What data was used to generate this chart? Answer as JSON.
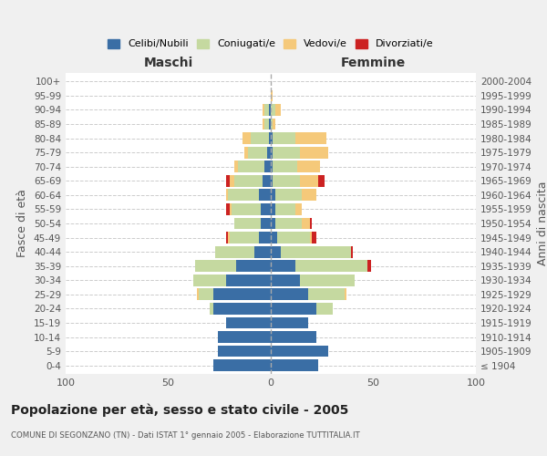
{
  "age_groups": [
    "100+",
    "95-99",
    "90-94",
    "85-89",
    "80-84",
    "75-79",
    "70-74",
    "65-69",
    "60-64",
    "55-59",
    "50-54",
    "45-49",
    "40-44",
    "35-39",
    "30-34",
    "25-29",
    "20-24",
    "15-19",
    "10-14",
    "5-9",
    "0-4"
  ],
  "birth_years": [
    "≤ 1904",
    "1905-1909",
    "1910-1914",
    "1915-1919",
    "1920-1924",
    "1925-1929",
    "1930-1934",
    "1935-1939",
    "1940-1944",
    "1945-1949",
    "1950-1954",
    "1955-1959",
    "1960-1964",
    "1965-1969",
    "1970-1974",
    "1975-1979",
    "1980-1984",
    "1985-1989",
    "1990-1994",
    "1995-1999",
    "2000-2004"
  ],
  "male": {
    "celibe": [
      0,
      0,
      1,
      1,
      1,
      2,
      3,
      4,
      6,
      5,
      5,
      6,
      8,
      17,
      22,
      28,
      28,
      22,
      26,
      26,
      28
    ],
    "coniugato": [
      0,
      0,
      2,
      2,
      9,
      9,
      13,
      14,
      15,
      14,
      13,
      14,
      19,
      20,
      16,
      7,
      2,
      0,
      0,
      0,
      0
    ],
    "vedovo": [
      0,
      0,
      1,
      1,
      4,
      2,
      2,
      2,
      1,
      1,
      0,
      1,
      0,
      0,
      0,
      1,
      0,
      0,
      0,
      0,
      0
    ],
    "divorziato": [
      0,
      0,
      0,
      0,
      0,
      0,
      0,
      2,
      0,
      2,
      0,
      1,
      0,
      0,
      0,
      0,
      0,
      0,
      0,
      0,
      0
    ]
  },
  "female": {
    "nubile": [
      0,
      0,
      0,
      0,
      1,
      1,
      1,
      1,
      2,
      2,
      2,
      3,
      5,
      12,
      14,
      18,
      22,
      18,
      22,
      28,
      23
    ],
    "coniugata": [
      0,
      0,
      2,
      1,
      11,
      13,
      12,
      13,
      13,
      10,
      13,
      16,
      34,
      35,
      27,
      18,
      8,
      0,
      0,
      0,
      0
    ],
    "vedova": [
      0,
      1,
      3,
      1,
      15,
      14,
      11,
      9,
      7,
      3,
      4,
      1,
      0,
      0,
      0,
      1,
      0,
      0,
      0,
      0,
      0
    ],
    "divorziata": [
      0,
      0,
      0,
      0,
      0,
      0,
      0,
      3,
      0,
      0,
      1,
      2,
      1,
      2,
      0,
      0,
      0,
      0,
      0,
      0,
      0
    ]
  },
  "colors": {
    "celibe": "#3A6EA5",
    "coniugato": "#C5D9A0",
    "vedovo": "#F5C97A",
    "divorziato": "#CC2222"
  },
  "xlim": 100,
  "title": "Popolazione per età, sesso e stato civile - 2005",
  "subtitle": "COMUNE DI SEGONZANO (TN) - Dati ISTAT 1° gennaio 2005 - Elaborazione TUTTITALIA.IT",
  "ylabel_left": "Fasce di età",
  "ylabel_right": "Anni di nascita",
  "xlabel_left": "Maschi",
  "xlabel_right": "Femmine",
  "bg_color": "#f0f0f0",
  "plot_bg": "#ffffff"
}
